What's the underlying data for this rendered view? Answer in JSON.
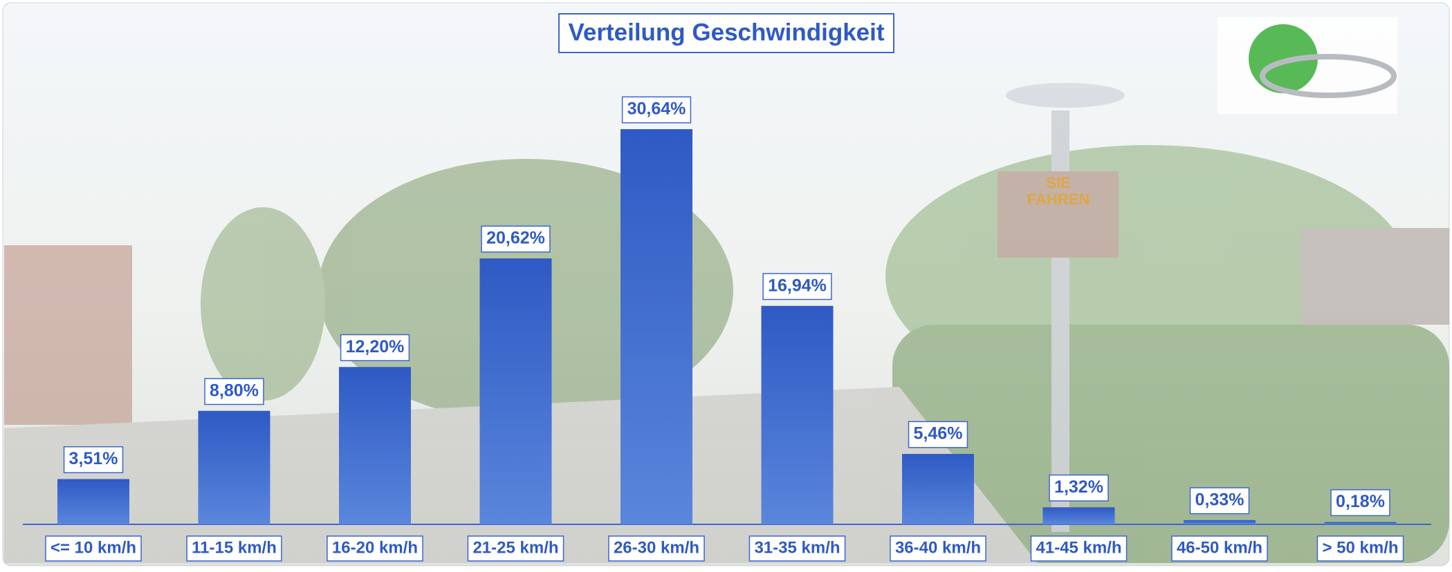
{
  "chart_data": {
    "type": "bar",
    "title": "Verteilung Geschwindigkeit",
    "categories": [
      "<= 10 km/h",
      "11-15 km/h",
      "16-20 km/h",
      "21-25 km/h",
      "26-30 km/h",
      "31-35 km/h",
      "36-40 km/h",
      "41-45 km/h",
      "46-50 km/h",
      "> 50 km/h"
    ],
    "values": [
      3.51,
      8.8,
      12.2,
      20.62,
      30.64,
      16.94,
      5.46,
      1.32,
      0.33,
      0.18
    ],
    "value_labels": [
      "3,51%",
      "8,80%",
      "12,20%",
      "20,62%",
      "30,64%",
      "16,94%",
      "5,46%",
      "1,32%",
      "0,33%",
      "0,18%"
    ],
    "color": "#3d66cc"
  },
  "background_sign": [
    "SIE",
    "FAHREN"
  ]
}
